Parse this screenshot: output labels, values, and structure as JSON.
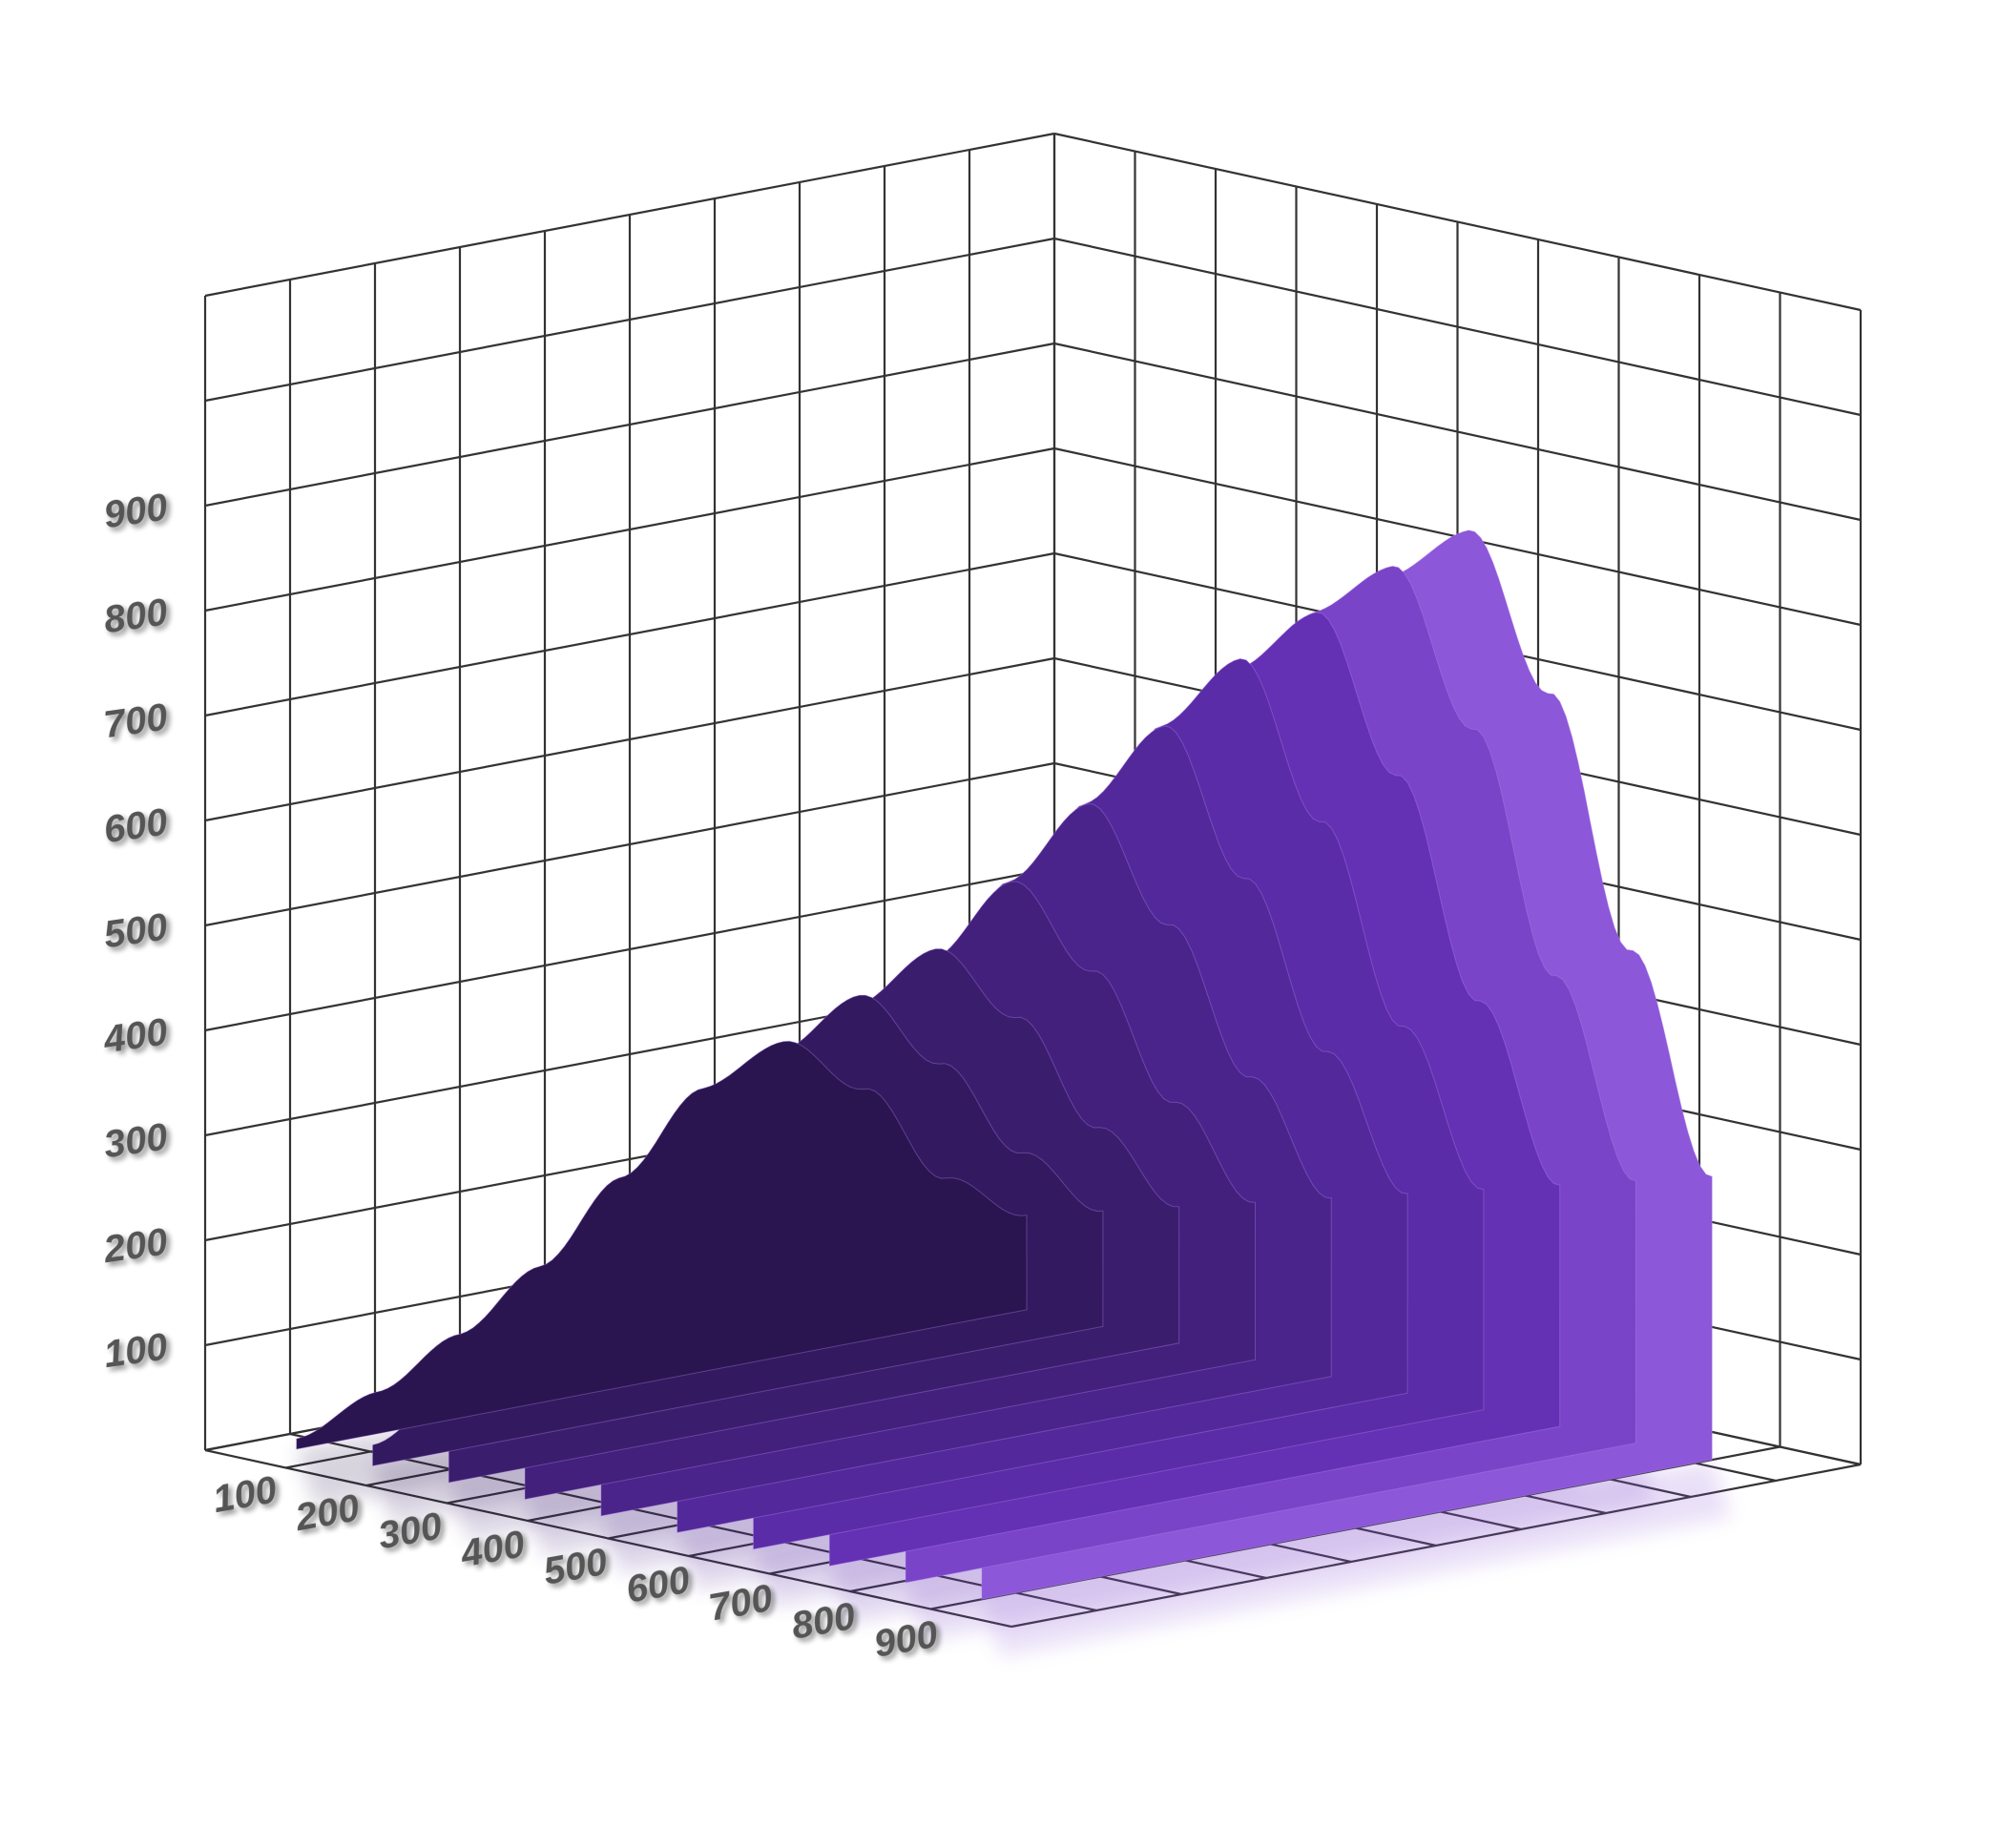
{
  "chart_data": {
    "type": "area",
    "style": "3d stacked ridgeline surface",
    "title": "",
    "xlabel": "",
    "ylabel": "",
    "zlabel": "",
    "z_axis": {
      "ticks": [
        "100",
        "200",
        "300",
        "400",
        "500",
        "600",
        "700",
        "800",
        "900"
      ],
      "range": [
        0,
        1100
      ]
    },
    "x_axis": {
      "ticks": [
        "100",
        "200",
        "300",
        "400",
        "500",
        "600",
        "700",
        "800",
        "900"
      ],
      "range": [
        100,
        1000
      ]
    },
    "grid": true,
    "series_colors": [
      "#2a1550",
      "#33195f",
      "#3b1d6e",
      "#42207c",
      "#4a248b",
      "#52289a",
      "#5a2ca8",
      "#6430b4",
      "#7a44c8",
      "#8c57d8"
    ],
    "series": [
      {
        "values": [
          90,
          140,
          240,
          300,
          270,
          200,
          130,
          80,
          40,
          10
        ]
      },
      {
        "values": [
          110,
          180,
          280,
          360,
          320,
          240,
          180,
          110,
          60,
          20
        ]
      },
      {
        "values": [
          130,
          220,
          340,
          420,
          380,
          290,
          220,
          170,
          90,
          30
        ]
      },
      {
        "values": [
          150,
          260,
          400,
          500,
          440,
          330,
          250,
          230,
          120,
          40
        ]
      },
      {
        "values": [
          170,
          300,
          460,
          590,
          530,
          390,
          290,
          300,
          160,
          55
        ]
      },
      {
        "values": [
          190,
          340,
          520,
          680,
          620,
          450,
          320,
          350,
          200,
          70
        ]
      },
      {
        "values": [
          210,
          380,
          590,
          760,
          710,
          510,
          360,
          390,
          230,
          80
        ]
      },
      {
        "values": [
          230,
          420,
          650,
          820,
          780,
          560,
          390,
          410,
          250,
          90
        ]
      },
      {
        "values": [
          250,
          460,
          710,
          880,
          850,
          610,
          410,
          430,
          260,
          100
        ]
      },
      {
        "values": [
          270,
          500,
          760,
          930,
          900,
          640,
          430,
          450,
          270,
          110
        ]
      }
    ]
  }
}
